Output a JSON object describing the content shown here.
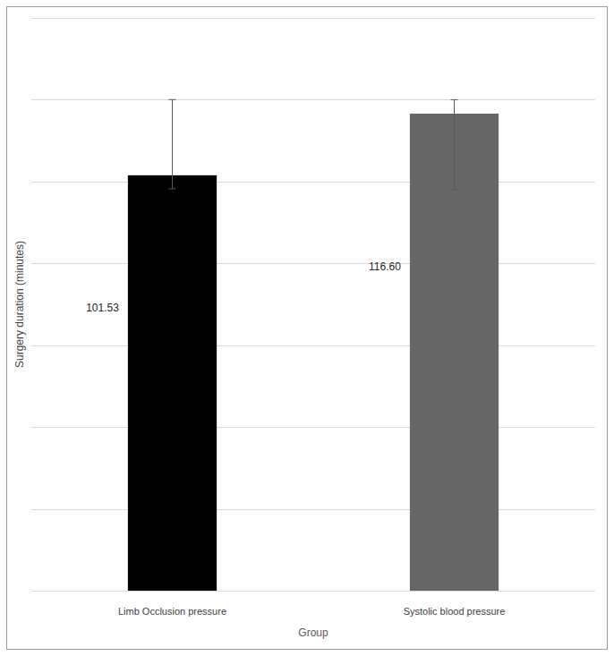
{
  "chart_data": {
    "type": "bar",
    "categories": [
      "Limb Occlusion pressure",
      "Systolic blood pressure"
    ],
    "values": [
      101.53,
      116.6
    ],
    "value_labels": [
      "101.53",
      "116.60"
    ],
    "error_plus": [
      18.5,
      3.4
    ],
    "error_minus": [
      3.3,
      18.6
    ],
    "colors": [
      "#000000",
      "#666666"
    ],
    "x_label": "Group",
    "y_label": "Surgery duration (minutes)",
    "ylim": [
      0,
      140
    ],
    "yticks": [
      0,
      20,
      40,
      60,
      80,
      100,
      120,
      140
    ],
    "grid": true,
    "data_labels": true,
    "tick_labels": false
  }
}
